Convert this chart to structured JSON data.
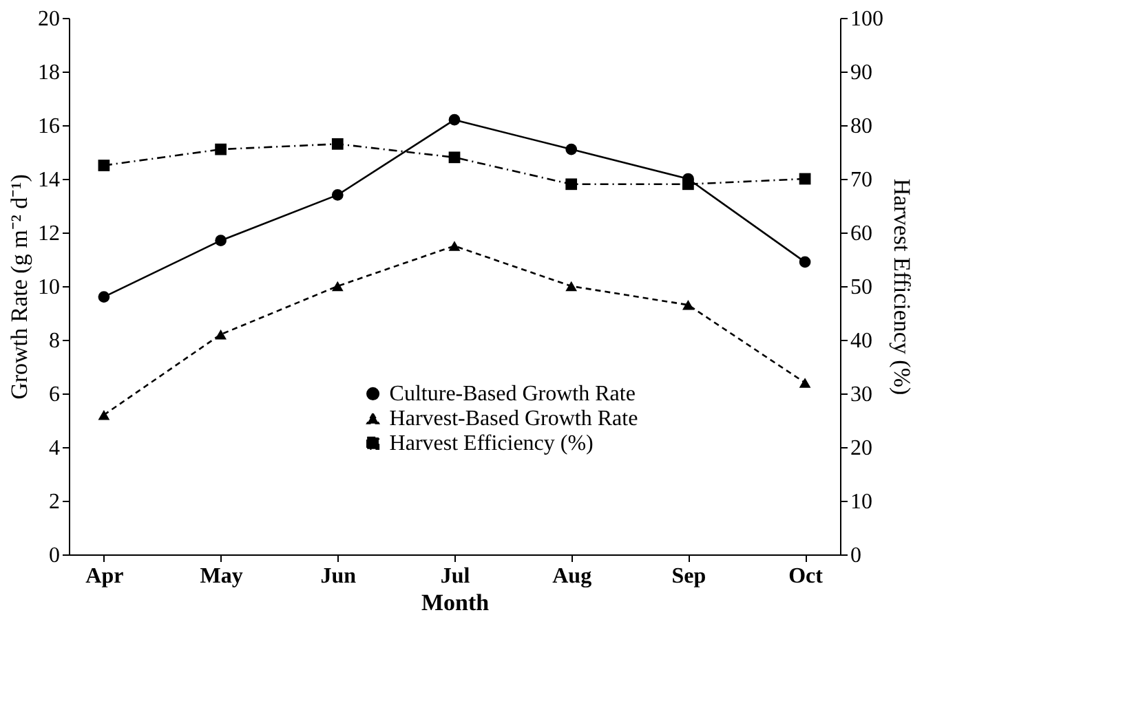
{
  "chart_data": {
    "type": "line",
    "xlabel": "Month",
    "ylabel": "Growth Rate (g m⁻² d⁻¹)",
    "y2label": "Harvest Efficiency (%)",
    "categories": [
      "Apr",
      "May",
      "Jun",
      "Jul",
      "Aug",
      "Sep",
      "Oct"
    ],
    "series": [
      {
        "name": "Culture-Based Growth Rate",
        "color": "#000000",
        "marker": "circle",
        "line_style": "solid",
        "values": [
          9.6,
          11.7,
          13.4,
          16.2,
          15.1,
          14.0,
          10.9
        ]
      },
      {
        "name": "Harvest-Based Growth Rate",
        "color": "#000000",
        "marker": "triangle",
        "line_style": "dashed",
        "values": [
          5.2,
          8.2,
          10.0,
          11.5,
          10.0,
          9.3,
          6.4
        ]
      },
      {
        "name": "Harvest Efficiency (%)",
        "color": "#000000",
        "marker": "square",
        "line_style": "dotted",
        "axis": "y2",
        "values": [
          72.5,
          75.5,
          76.5,
          74.0,
          69.0,
          69.0,
          70.0
        ]
      }
    ],
    "ylim": [
      0,
      20
    ],
    "yticks": [
      0,
      2,
      4,
      6,
      8,
      10,
      12,
      14,
      16,
      18,
      20
    ],
    "y2lim": [
      0,
      100
    ],
    "y2ticks": [
      0,
      10,
      20,
      30,
      40,
      50,
      60,
      70,
      80,
      90,
      100
    ],
    "grid": false,
    "legend": "bottom"
  }
}
